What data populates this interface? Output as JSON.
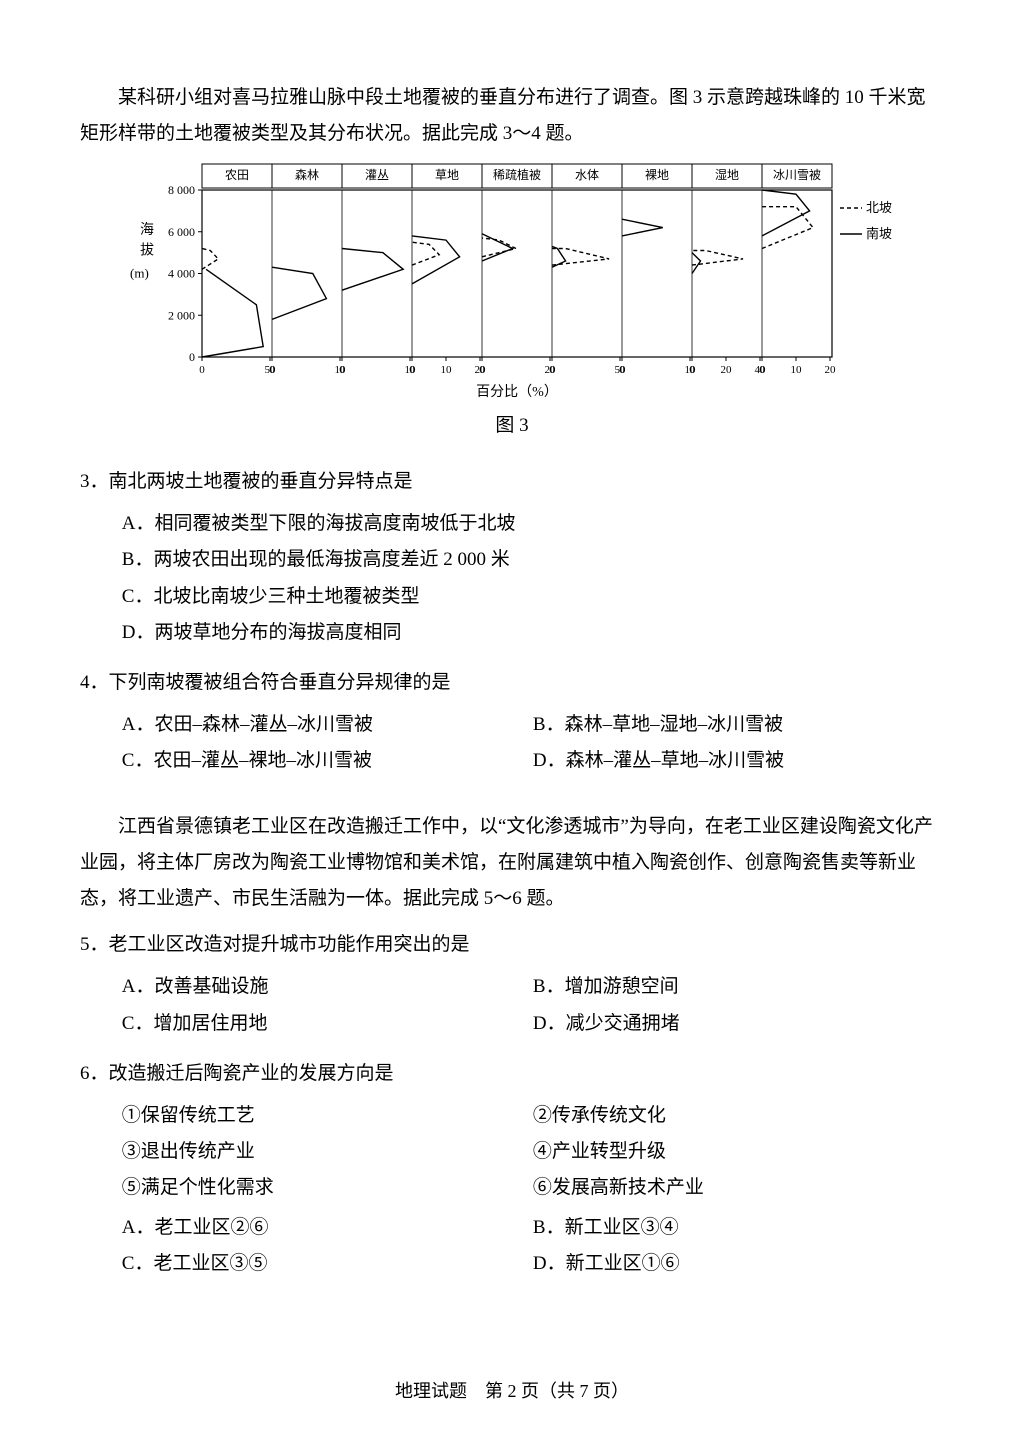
{
  "intro1": "某科研小组对喜马拉雅山脉中段土地覆被的垂直分布进行了调查。图 3 示意跨越珠峰的 10 千米宽矩形样带的土地覆被类型及其分布状况。据此完成 3～4 题。",
  "chart": {
    "figLabel": "图 3",
    "yLabel1": "海",
    "yLabel2": "拔",
    "yLabel3": "(m)",
    "xLabel": "百分比（%）",
    "legendNorth": "北坡",
    "legendSouth": "南坡",
    "yMin": 0,
    "yMax": 8000,
    "yTicks": [
      0,
      2000,
      4000,
      6000,
      8000
    ],
    "panels": [
      {
        "title": "农田",
        "xMax": 50,
        "xTicks": [
          0,
          50
        ]
      },
      {
        "title": "森林",
        "xMax": 10,
        "xTicks": [
          0,
          10
        ]
      },
      {
        "title": "灌丛",
        "xMax": 10,
        "xTicks": [
          0,
          10
        ]
      },
      {
        "title": "草地",
        "xMax": 20,
        "xTicks": [
          0,
          10,
          20
        ]
      },
      {
        "title": "稀疏植被",
        "xMax": 20,
        "xTicks": [
          0,
          20
        ]
      },
      {
        "title": "水体",
        "xMax": 50,
        "xTicks": [
          0,
          50
        ]
      },
      {
        "title": "裸地",
        "xMax": 10,
        "xTicks": [
          0,
          10
        ]
      },
      {
        "title": "湿地",
        "xMax": 40,
        "xTicks": [
          0,
          20,
          40
        ]
      },
      {
        "title": "冰川雪被",
        "xMax": 20,
        "xTicks": [
          0,
          10,
          20
        ]
      }
    ],
    "colors": {
      "axis": "#000000",
      "grid": "#888888",
      "northDash": "4,3",
      "background": "#ffffff",
      "headerFill": "#cfcfcf",
      "text": "#000000"
    }
  },
  "q3": {
    "stem": "3．南北两坡土地覆被的垂直分异特点是",
    "A": "A．相同覆被类型下限的海拔高度南坡低于北坡",
    "B": "B．两坡农田出现的最低海拔高度差近 2 000 米",
    "C": "C．北坡比南坡少三种土地覆被类型",
    "D": "D．两坡草地分布的海拔高度相同"
  },
  "q4": {
    "stem": "4．下列南坡覆被组合符合垂直分异规律的是",
    "A": "A．农田–森林–灌丛–冰川雪被",
    "B": "B．森林–草地–湿地–冰川雪被",
    "C": "C．农田–灌丛–裸地–冰川雪被",
    "D": "D．森林–灌丛–草地–冰川雪被"
  },
  "intro2": "江西省景德镇老工业区在改造搬迁工作中，以“文化渗透城市”为导向，在老工业区建设陶瓷文化产业园，将主体厂房改为陶瓷工业博物馆和美术馆，在附属建筑中植入陶瓷创作、创意陶瓷售卖等新业态，将工业遗产、市民生活融为一体。据此完成 5～6 题。",
  "q5": {
    "stem": "5．老工业区改造对提升城市功能作用突出的是",
    "A": "A．改善基础设施",
    "B": "B．增加游憩空间",
    "C": "C．增加居住用地",
    "D": "D．减少交通拥堵"
  },
  "q6": {
    "stem": "6．改造搬迁后陶瓷产业的发展方向是",
    "s1": "①保留传统工艺",
    "s2": "②传承传统文化",
    "s3": "③退出传统产业",
    "s4": "④产业转型升级",
    "s5": "⑤满足个性化需求",
    "s6": "⑥发展高新技术产业",
    "A": "A．老工业区②⑥",
    "B": "B．新工业区③④",
    "C": "C．老工业区③⑤",
    "D": "D．新工业区①⑥"
  },
  "footer": "地理试题　第 2 页（共 7 页）"
}
